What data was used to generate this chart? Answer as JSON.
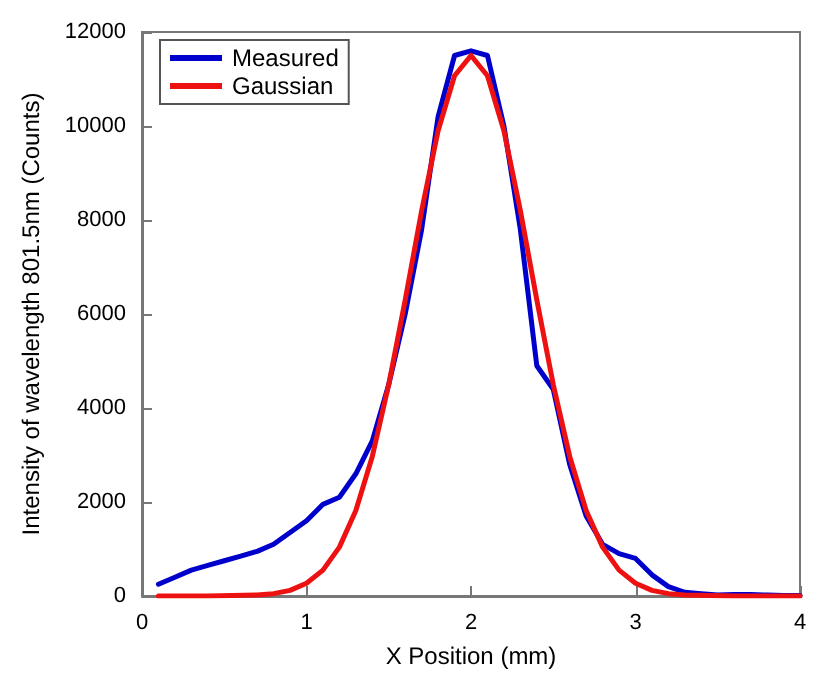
{
  "chart_data": {
    "type": "line",
    "xlabel": "X Position (mm)",
    "ylabel": "Intensity of wavelength 801.5nm (Counts)",
    "xlim": [
      0,
      4
    ],
    "xticks": [
      0,
      1,
      2,
      3,
      4
    ],
    "ylim": [
      0,
      12000
    ],
    "yticks": [
      0,
      2000,
      4000,
      6000,
      8000,
      10000,
      12000
    ],
    "grid": false,
    "legend": "top left",
    "marker": "none",
    "line_style": "solid",
    "series": [
      {
        "name": "Measured",
        "color": "#0000cc",
        "x": [
          0.1,
          0.2,
          0.3,
          0.4,
          0.5,
          0.6,
          0.7,
          0.8,
          0.9,
          1.0,
          1.1,
          1.2,
          1.3,
          1.4,
          1.5,
          1.6,
          1.7,
          1.8,
          1.9,
          2.0,
          2.1,
          2.2,
          2.3,
          2.4,
          2.5,
          2.6,
          2.7,
          2.8,
          2.9,
          3.0,
          3.1,
          3.2,
          3.3,
          3.4,
          3.5,
          3.6,
          3.7,
          3.8,
          3.9,
          4.0
        ],
        "values": [
          250,
          400,
          550,
          650,
          750,
          850,
          950,
          1100,
          1350,
          1600,
          1950,
          2100,
          2600,
          3300,
          4500,
          6000,
          7800,
          10200,
          11500,
          11600,
          11500,
          10000,
          7800,
          4900,
          4400,
          2800,
          1700,
          1100,
          900,
          800,
          450,
          200,
          80,
          50,
          20,
          30,
          30,
          20,
          10,
          10
        ]
      },
      {
        "name": "Gaussian",
        "color": "#ee1111",
        "x": [
          0.1,
          0.4,
          0.7,
          0.8,
          0.9,
          1.0,
          1.1,
          1.2,
          1.3,
          1.4,
          1.5,
          1.6,
          1.7,
          1.8,
          1.9,
          2.0,
          2.1,
          2.2,
          2.3,
          2.4,
          2.5,
          2.6,
          2.7,
          2.8,
          2.9,
          3.0,
          3.1,
          3.2,
          3.3,
          3.6,
          4.0
        ],
        "values": [
          0,
          0,
          20,
          50,
          120,
          270,
          550,
          1040,
          1820,
          2970,
          4500,
          6300,
          8200,
          9900,
          11070,
          11500,
          11070,
          9900,
          8200,
          6300,
          4500,
          2970,
          1820,
          1040,
          550,
          270,
          120,
          50,
          20,
          0,
          0
        ]
      }
    ]
  }
}
